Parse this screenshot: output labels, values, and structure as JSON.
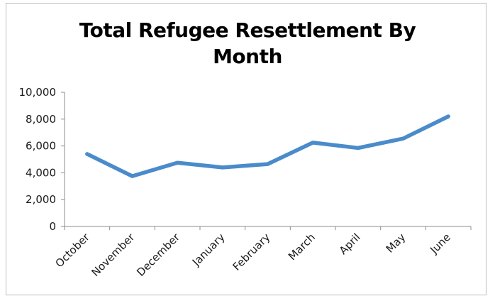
{
  "chart_data": {
    "type": "line",
    "title_lines": [
      "Total Refugee Resettlement By",
      "Month"
    ],
    "title": "Total Refugee Resettlement By Month",
    "xlabel": "",
    "ylabel": "",
    "categories": [
      "October",
      "November",
      "December",
      "January",
      "February",
      "March",
      "April",
      "May",
      "June"
    ],
    "series": [
      {
        "name": "Total Refugee Resettlement",
        "values": [
          5400,
          3750,
          4750,
          4400,
          4650,
          6250,
          5850,
          6550,
          8200
        ],
        "color": "#4a8bcb"
      }
    ],
    "ylim": [
      0,
      10000
    ],
    "yticks": [
      0,
      2000,
      4000,
      6000,
      8000,
      10000
    ],
    "ytick_labels": [
      "0",
      "2,000",
      "4,000",
      "6,000",
      "8,000",
      "10,000"
    ],
    "grid": false,
    "legend": "none"
  }
}
